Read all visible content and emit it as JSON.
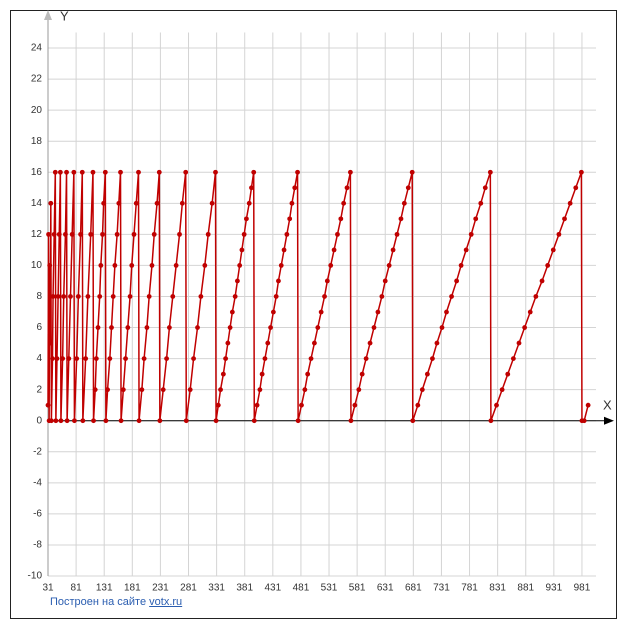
{
  "chart_data": {
    "type": "line",
    "x_label": "X",
    "y_label": "Y",
    "footer_text": "Построен на сайте",
    "footer_link": "votx.ru",
    "xlim": [
      31,
      1006
    ],
    "ylim": [
      -10,
      25
    ],
    "xticks": [
      31,
      81,
      131,
      181,
      231,
      281,
      331,
      381,
      431,
      481,
      531,
      581,
      631,
      681,
      731,
      781,
      831,
      881,
      931,
      981
    ],
    "yticks": [
      -10,
      -8,
      -6,
      -4,
      -2,
      0,
      2,
      4,
      6,
      8,
      10,
      12,
      14,
      16,
      18,
      20,
      22,
      24
    ],
    "grid": true,
    "series": [
      {
        "color": "#c00000",
        "x": [
          31,
          32,
          33,
          34,
          35,
          36,
          37,
          39,
          40,
          42,
          44,
          45,
          47,
          49,
          51,
          53,
          54,
          57,
          59,
          62,
          64,
          65,
          68,
          71,
          74,
          77,
          78,
          82,
          85,
          89,
          92,
          93,
          98,
          102,
          107,
          111,
          112,
          115,
          117,
          120,
          123,
          125,
          128,
          130,
          133,
          134,
          137,
          141,
          144,
          147,
          150,
          154,
          157,
          160,
          161,
          165,
          169,
          173,
          177,
          180,
          184,
          188,
          192,
          193,
          198,
          202,
          207,
          211,
          216,
          220,
          225,
          229,
          230,
          236,
          242,
          247,
          253,
          259,
          265,
          270,
          276,
          277,
          284,
          290,
          297,
          303,
          310,
          316,
          323,
          329,
          330,
          334,
          338,
          343,
          347,
          351,
          355,
          359,
          364,
          368,
          372,
          376,
          380,
          384,
          389,
          393,
          397,
          398,
          403,
          408,
          412,
          417,
          422,
          427,
          432,
          437,
          441,
          446,
          451,
          456,
          461,
          465,
          470,
          475,
          476,
          482,
          488,
          493,
          499,
          505,
          511,
          517,
          523,
          528,
          534,
          540,
          546,
          552,
          557,
          563,
          569,
          570,
          577,
          584,
          590,
          597,
          604,
          611,
          618,
          625,
          631,
          638,
          645,
          652,
          659,
          665,
          672,
          679,
          680,
          689,
          697,
          706,
          715,
          723,
          732,
          740,
          749,
          758,
          766,
          775,
          784,
          792,
          801,
          809,
          818,
          819,
          829,
          839,
          849,
          859,
          869,
          879,
          889,
          899,
          910,
          920,
          930,
          940,
          950,
          960,
          970,
          980,
          981,
          985,
          992
        ],
        "values": [
          1,
          12,
          0,
          10,
          5,
          14,
          0,
          4,
          8,
          12,
          16,
          0,
          4,
          8,
          12,
          16,
          0,
          4,
          8,
          12,
          16,
          0,
          4,
          8,
          12,
          16,
          0,
          4,
          8,
          12,
          16,
          0,
          4,
          8,
          12,
          16,
          0,
          2,
          4,
          6,
          8,
          10,
          12,
          14,
          16,
          0,
          2,
          4,
          6,
          8,
          10,
          12,
          14,
          16,
          0,
          2,
          4,
          6,
          8,
          10,
          12,
          14,
          16,
          0,
          2,
          4,
          6,
          8,
          10,
          12,
          14,
          16,
          0,
          2,
          4,
          6,
          8,
          10,
          12,
          14,
          16,
          0,
          2,
          4,
          6,
          8,
          10,
          12,
          14,
          16,
          0,
          1,
          2,
          3,
          4,
          5,
          6,
          7,
          8,
          9,
          10,
          11,
          12,
          13,
          14,
          15,
          16,
          0,
          1,
          2,
          3,
          4,
          5,
          6,
          7,
          8,
          9,
          10,
          11,
          12,
          13,
          14,
          15,
          16,
          0,
          1,
          2,
          3,
          4,
          5,
          6,
          7,
          8,
          9,
          10,
          11,
          12,
          13,
          14,
          15,
          16,
          0,
          1,
          2,
          3,
          4,
          5,
          6,
          7,
          8,
          9,
          10,
          11,
          12,
          13,
          14,
          15,
          16,
          0,
          1,
          2,
          3,
          4,
          5,
          6,
          7,
          8,
          9,
          10,
          11,
          12,
          13,
          14,
          15,
          16,
          0,
          1,
          2,
          3,
          4,
          5,
          6,
          7,
          8,
          9,
          10,
          11,
          12,
          13,
          14,
          15,
          16,
          0,
          0,
          1
        ]
      }
    ]
  }
}
